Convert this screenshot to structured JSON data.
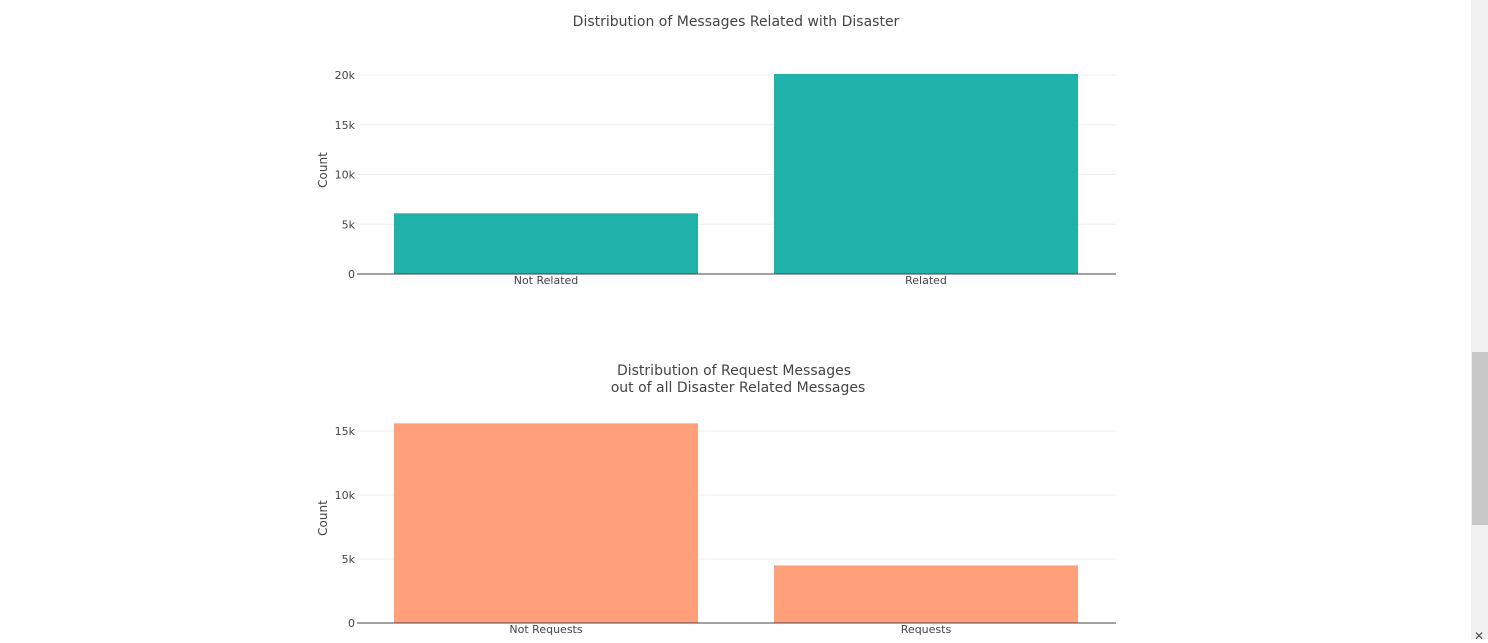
{
  "charts": [
    {
      "title_lines": [
        "Distribution of Messages Related with Disaster"
      ],
      "ylabel": "Count",
      "bar_color": "#20b2aa",
      "chart_data": {
        "type": "bar",
        "title": "Distribution of Messages Related with Disaster",
        "categories": [
          "Not Related",
          "Related"
        ],
        "values": [
          6100,
          20100
        ],
        "ylim": [
          0,
          20000
        ],
        "yticks": [
          0,
          5000,
          10000,
          15000,
          20000
        ],
        "ytick_labels": [
          "0",
          "5k",
          "10k",
          "15k",
          "20k"
        ],
        "xlabel": "",
        "ylabel": "Count",
        "grid": true
      }
    },
    {
      "title_lines": [
        "Distribution of Request Messages",
        "out of all Disaster Related Messages"
      ],
      "ylabel": "Count",
      "bar_color": "#ffa07a",
      "chart_data": {
        "type": "bar",
        "title": "Distribution of Request Messages out of all Disaster Related Messages",
        "categories": [
          "Not Requests",
          "Requests"
        ],
        "values": [
          15600,
          4500
        ],
        "ylim": [
          0,
          15000
        ],
        "yticks": [
          0,
          5000,
          10000,
          15000
        ],
        "ytick_labels": [
          "0",
          "5k",
          "10k",
          "15k"
        ],
        "xlabel": "",
        "ylabel": "Count",
        "grid": true
      }
    }
  ],
  "scrollbar": {
    "arrow": "✕",
    "icon": "scroll-down-arrow-icon"
  }
}
